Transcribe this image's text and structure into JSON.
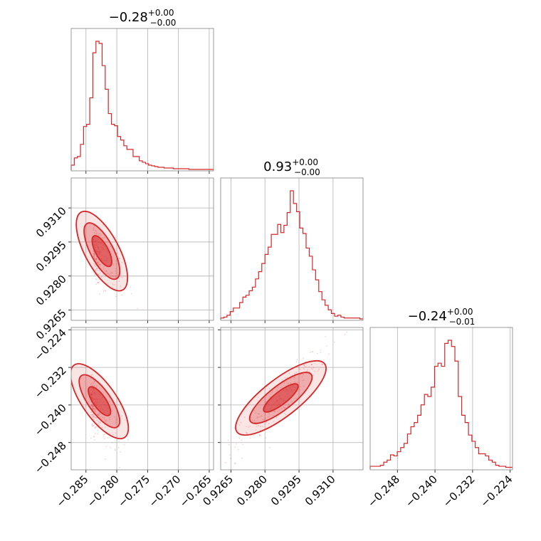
{
  "chart_data": {
    "type": "corner",
    "color": "#d62728",
    "grid": true,
    "params": [
      {
        "title_value": "−0.28",
        "title_sup": "+0.00",
        "title_sub": "−0.00",
        "range": [
          -0.2874,
          -0.2643
        ],
        "ticks": [
          {
            "v": -0.285,
            "label": "−0.285"
          },
          {
            "v": -0.28,
            "label": "−0.280"
          },
          {
            "v": -0.275,
            "label": "−0.275"
          },
          {
            "v": -0.27,
            "label": "−0.270"
          },
          {
            "v": -0.265,
            "label": "−0.265"
          }
        ]
      },
      {
        "title_value": "0.93",
        "title_sup": "+0.00",
        "title_sub": "−0.00",
        "range": [
          0.92605,
          0.93232
        ],
        "ticks": [
          {
            "v": 0.9265,
            "label": "0.9265"
          },
          {
            "v": 0.928,
            "label": "0.9280"
          },
          {
            "v": 0.9295,
            "label": "0.9295"
          },
          {
            "v": 0.931,
            "label": "0.9310"
          }
        ]
      },
      {
        "title_value": "−0.24",
        "title_sup": "+0.00",
        "title_sub": "−0.01",
        "range": [
          -0.2538,
          -0.2235
        ],
        "ticks": [
          {
            "v": -0.248,
            "label": "−0.248"
          },
          {
            "v": -0.24,
            "label": "−0.240"
          },
          {
            "v": -0.232,
            "label": "−0.232"
          },
          {
            "v": -0.224,
            "label": "−0.224"
          }
        ]
      }
    ],
    "histograms": [
      {
        "param": 0,
        "counts": [
          6,
          16,
          18,
          35,
          60,
          63,
          100,
          163,
          179,
          176,
          145,
          112,
          78,
          63,
          61,
          46,
          41,
          33,
          28,
          28,
          18,
          18,
          12,
          10,
          8,
          6,
          5,
          4,
          3,
          3,
          2,
          2,
          2,
          1,
          1,
          1,
          1,
          1,
          0,
          0,
          0,
          0,
          0,
          0,
          0,
          0
        ]
      },
      {
        "param": 1,
        "counts": [
          1,
          2,
          4,
          8,
          12,
          12,
          18,
          24,
          26,
          31,
          35,
          44,
          52,
          61,
          71,
          79,
          93,
          93,
          104,
          95,
          103,
          117,
          141,
          127,
          118,
          100,
          94,
          78,
          69,
          54,
          43,
          30,
          21,
          15,
          10,
          6,
          3,
          4,
          2,
          1,
          1,
          1,
          1,
          1,
          0
        ]
      },
      {
        "param": 2,
        "counts": [
          2,
          2,
          2,
          3,
          6,
          8,
          13,
          12,
          16,
          20,
          24,
          33,
          40,
          44,
          51,
          61,
          71,
          69,
          78,
          98,
          101,
          98,
          120,
          123,
          117,
          103,
          69,
          51,
          44,
          32,
          26,
          20,
          14,
          14,
          12,
          8,
          6,
          3,
          2,
          2,
          1,
          1
        ]
      }
    ],
    "scatter_summary": [
      {
        "x_param": 0,
        "y_param": 1,
        "x_mode": -0.2838,
        "y_mode": 0.9291,
        "correlation": -0.55
      },
      {
        "x_param": 0,
        "y_param": 2,
        "x_mode": -0.2842,
        "y_mode": -0.2392,
        "correlation": -0.7
      },
      {
        "x_param": 1,
        "y_param": 2,
        "x_mode": 0.9287,
        "y_mode": -0.2385,
        "correlation": 0.85
      }
    ]
  }
}
